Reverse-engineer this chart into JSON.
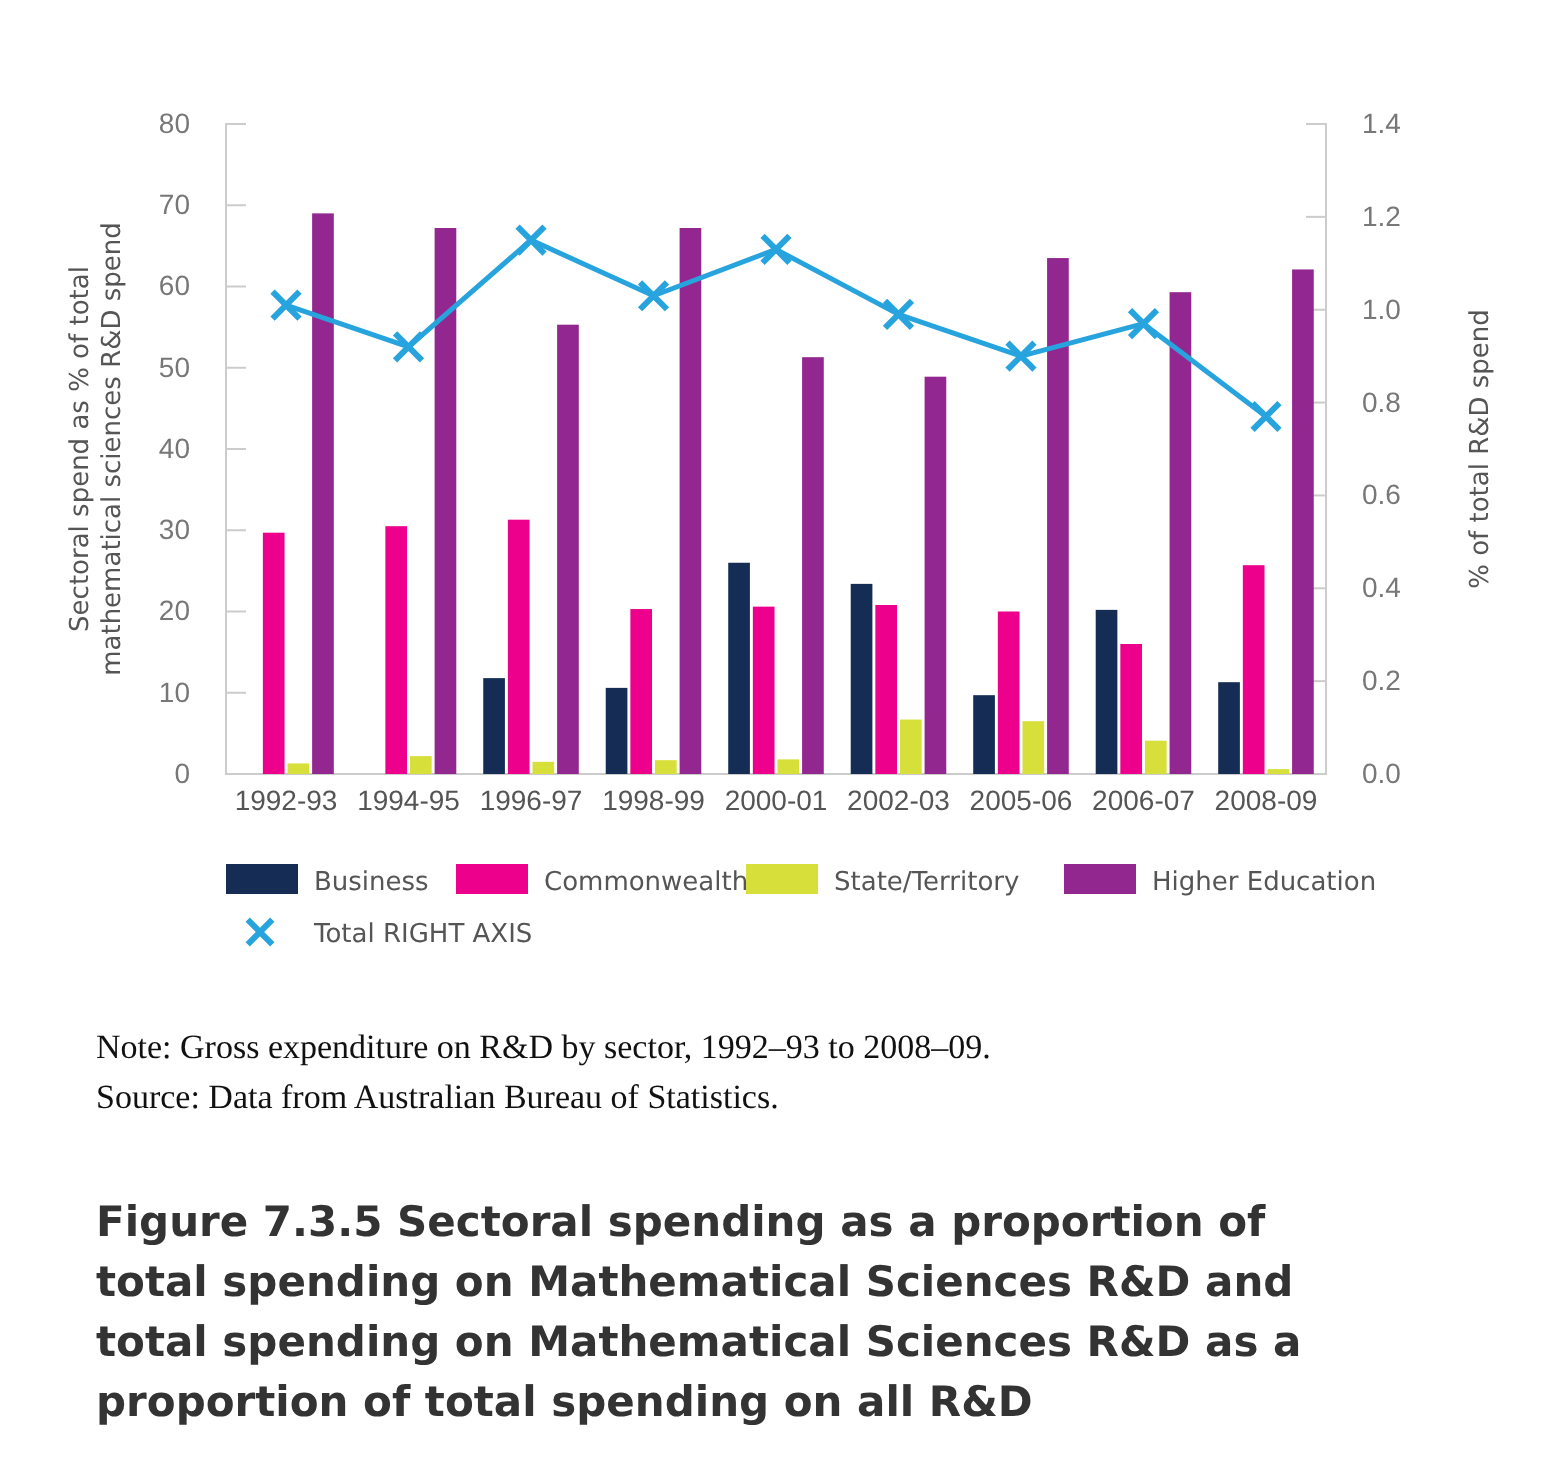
{
  "chart_data": {
    "type": "bar",
    "categories": [
      "1992-93",
      "1994-95",
      "1996-97",
      "1998-99",
      "2000-01",
      "2002-03",
      "2005-06",
      "2006-07",
      "2008-09"
    ],
    "series": [
      {
        "name": "Business",
        "color": "#152d55",
        "values": [
          0,
          0,
          11.8,
          10.6,
          26,
          23.4,
          9.7,
          20.2,
          11.3
        ]
      },
      {
        "name": "Commonwealth",
        "color": "#ec008c",
        "values": [
          29.7,
          30.5,
          31.3,
          20.3,
          20.6,
          20.8,
          20,
          16,
          25.7
        ]
      },
      {
        "name": "State/Territory",
        "color": "#d7df3a",
        "values": [
          1.3,
          2.2,
          1.5,
          1.7,
          1.8,
          6.7,
          6.5,
          4.1,
          0.6
        ]
      },
      {
        "name": "Higher Education",
        "color": "#92278f",
        "values": [
          69,
          67.2,
          55.3,
          67.2,
          51.3,
          48.9,
          63.5,
          59.3,
          62.1
        ]
      },
      {
        "name": "Total RIGHT AXIS",
        "type": "line",
        "axis": "y2",
        "color": "#27a3dd",
        "marker": "cross",
        "values": [
          1.01,
          0.92,
          1.15,
          1.03,
          1.13,
          0.99,
          0.9,
          0.97,
          0.77
        ]
      }
    ],
    "ylabel": "Sectoral spend as % of total mathematical sciences R&D spend",
    "y2label": "% of total R&D spend",
    "ylim": [
      0,
      80
    ],
    "yticks": [
      0,
      10,
      20,
      30,
      40,
      50,
      60,
      70,
      80
    ],
    "y2lim": [
      0,
      1.4
    ],
    "y2ticks": [
      {
        "value": 0,
        "label": "0.0"
      },
      {
        "value": 0.2,
        "label": "0.2"
      },
      {
        "value": 0.4,
        "label": "0.4"
      },
      {
        "value": 0.6,
        "label": "0.6"
      },
      {
        "value": 0.8,
        "label": "0.8"
      },
      {
        "value": 1,
        "label": "1.0"
      },
      {
        "value": 1.2,
        "label": "1.2"
      },
      {
        "value": 1.4,
        "label": "1.4"
      }
    ],
    "grid": false,
    "legend": "bottom",
    "annotations": [
      "Note: Gross expenditure on R&D by sector, 1992–93 to 2008–09.",
      "Source: Data from Australian Bureau of Statistics.",
      "Figure 7.3.5 Sectoral spending as a proportion of total spending on Mathematical Sciences R&D and total spending on Mathematical Sciences R&D as a proportion of total spending on all R&D"
    ]
  }
}
